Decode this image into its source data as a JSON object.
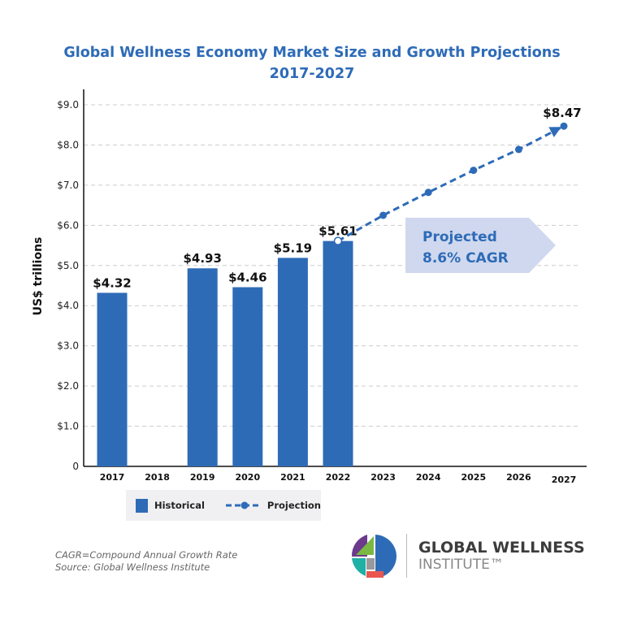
{
  "chart_data": {
    "type": "bar+line",
    "title": "Global Wellness Economy Market Size and Growth Projections",
    "subtitle": "2017-2027",
    "ylabel": "US$ trillions",
    "ylim": [
      0,
      9
    ],
    "yticks": [
      "0",
      "$1.0",
      "$2.0",
      "$3.0",
      "$4.0",
      "$5.0",
      "$6.0",
      "$7.0",
      "$8.0",
      "$9.0"
    ],
    "categories": [
      "2017",
      "2018",
      "2019",
      "2020",
      "2021",
      "2022",
      "2023",
      "2024",
      "2025",
      "2026",
      "2027"
    ],
    "grid": true,
    "series": [
      {
        "name": "Historical",
        "type": "bar",
        "color": "#2e6bb7",
        "values": [
          4.32,
          null,
          4.93,
          4.46,
          5.19,
          5.61,
          null,
          null,
          null,
          null,
          null
        ],
        "labels": [
          "$4.32",
          "",
          "$4.93",
          "$4.46",
          "$5.19",
          "$5.61",
          "",
          "",
          "",
          "",
          ""
        ]
      },
      {
        "name": "Projection",
        "type": "line",
        "style": "dashed",
        "color": "#2e6bb7",
        "values": [
          null,
          null,
          null,
          null,
          null,
          5.61,
          6.25,
          6.82,
          7.37,
          7.89,
          8.47
        ],
        "labels": [
          "",
          "",
          "",
          "",
          "",
          "",
          "",
          "",
          "",
          "",
          "$8.47"
        ]
      }
    ],
    "annotation": {
      "line1": "Projected",
      "line2": "8.6% CAGR",
      "color": "#cfd8ee"
    },
    "legend_position": "bottom"
  },
  "notes": {
    "line1": "CAGR=Compound Annual Growth Rate",
    "line2": "Source: Global Wellness Institute"
  },
  "logo": {
    "name": "GLOBAL WELLNESS",
    "sub": "INSTITUTE™"
  }
}
